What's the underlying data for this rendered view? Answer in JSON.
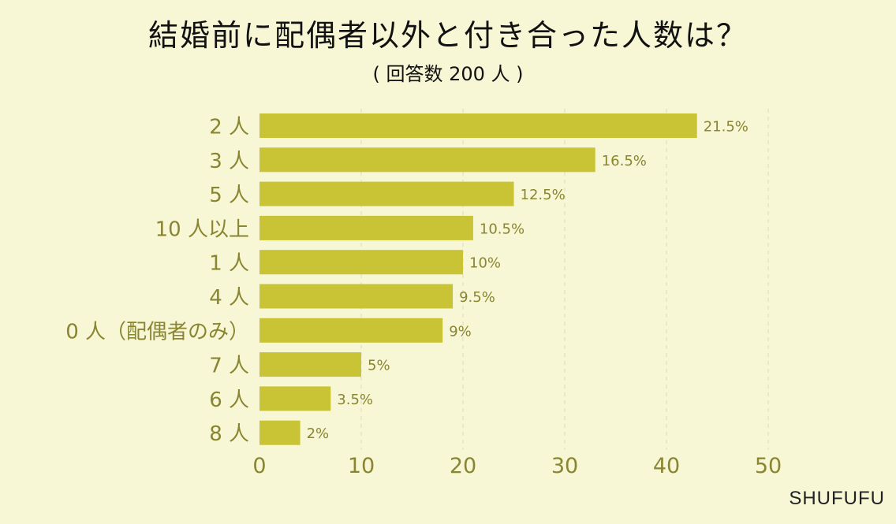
{
  "chart_data": {
    "type": "bar",
    "orientation": "horizontal",
    "title": "結婚前に配偶者以外と付き合った人数は？",
    "subtitle": "( 回答数 200 人 )",
    "categories": [
      "2 人",
      "3 人",
      "5 人",
      "10 人以上",
      "1 人",
      "4 人",
      "0 人（配偶者のみ）",
      "7 人",
      "6 人",
      "8 人"
    ],
    "values": [
      43,
      33,
      25,
      21,
      20,
      19,
      18,
      10,
      7,
      4
    ],
    "data_labels": [
      "21.5%",
      "16.5%",
      "12.5%",
      "10.5%",
      "10%",
      "9.5%",
      "9%",
      "5%",
      "3.5%",
      "2%"
    ],
    "xlim": [
      0,
      50
    ],
    "xticks": [
      "0",
      "10",
      "20",
      "30",
      "40",
      "50"
    ],
    "grid": true,
    "colors": {
      "bar": "#c9c435",
      "axis_text": "#8a8530",
      "grid": "#d8d8c0",
      "background": "#f7f7d6"
    }
  },
  "brand": "SHUFUFU"
}
